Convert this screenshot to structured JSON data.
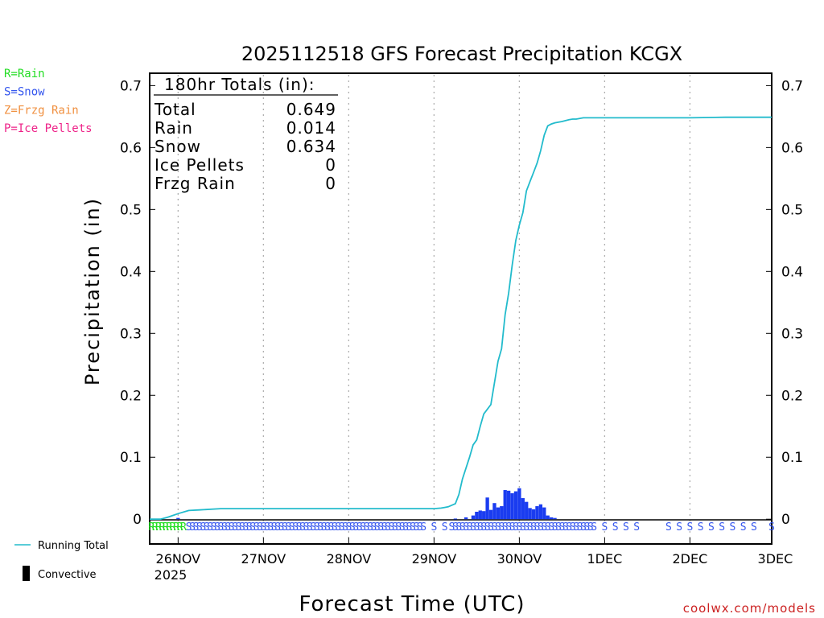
{
  "chart_data": {
    "type": "bar",
    "title": "2025112518 GFS Forecast Precipitation KCGX",
    "xlabel": "Forecast Time (UTC)",
    "ylabel": "Precipitation (in)",
    "ylim": [
      -0.04,
      0.72
    ],
    "xlim_hours": [
      -2,
      173
    ],
    "y_ticks": [
      "0",
      "0.1",
      "0.2",
      "0.3",
      "0.4",
      "0.5",
      "0.6",
      "0.7"
    ],
    "x_ticks": [
      {
        "label": "26NOV",
        "hour": 6
      },
      {
        "label": "27NOV",
        "hour": 30
      },
      {
        "label": "28NOV",
        "hour": 54
      },
      {
        "label": "29NOV",
        "hour": 78
      },
      {
        "label": "30NOV",
        "hour": 102
      },
      {
        "label": "1DEC",
        "hour": 126
      },
      {
        "label": "2DEC",
        "hour": 150
      },
      {
        "label": "3DEC",
        "hour": 174
      }
    ],
    "x_year_label": "2025",
    "totals_box": {
      "header": "180hr Totals (in):",
      "rows": [
        {
          "label": "Total",
          "value": "0.649"
        },
        {
          "label": "Rain",
          "value": "0.014"
        },
        {
          "label": "Snow",
          "value": "0.634"
        },
        {
          "label": "Ice Pellets",
          "value": "0"
        },
        {
          "label": "Frzg Rain",
          "value": "0"
        }
      ]
    },
    "legend_types": [
      {
        "label": "R=Rain",
        "color": "#22dd22"
      },
      {
        "label": "S=Snow",
        "color": "#3355ee"
      },
      {
        "label": "Z=Frzg Rain",
        "color": "#f09040"
      },
      {
        "label": "P=Ice Pellets",
        "color": "#ee2288"
      }
    ],
    "legend_series": [
      {
        "label": "Running Total",
        "color": "#22bbcc"
      },
      {
        "label": "Convective",
        "color": "#000000"
      }
    ],
    "running_total": {
      "hours": [
        -2,
        1,
        3,
        4.5,
        6,
        9,
        12,
        18,
        24,
        36,
        48,
        60,
        72,
        78,
        80,
        81,
        82,
        84,
        85,
        86,
        88,
        89,
        90,
        91,
        92,
        94,
        96,
        97,
        98,
        99,
        100,
        101,
        102,
        103,
        104,
        105,
        106,
        107,
        108,
        109,
        110,
        111,
        112,
        114,
        116,
        117,
        118,
        120,
        122,
        126,
        130,
        140,
        150,
        160,
        165,
        170,
        173
      ],
      "values": [
        0,
        0,
        0.003,
        0.006,
        0.009,
        0.014,
        0.015,
        0.017,
        0.017,
        0.017,
        0.017,
        0.017,
        0.017,
        0.017,
        0.018,
        0.019,
        0.02,
        0.025,
        0.04,
        0.065,
        0.1,
        0.12,
        0.128,
        0.15,
        0.17,
        0.185,
        0.255,
        0.275,
        0.33,
        0.365,
        0.41,
        0.45,
        0.475,
        0.495,
        0.53,
        0.545,
        0.56,
        0.575,
        0.595,
        0.62,
        0.635,
        0.638,
        0.64,
        0.642,
        0.645,
        0.646,
        0.646,
        0.648,
        0.648,
        0.648,
        0.648,
        0.648,
        0.648,
        0.649,
        0.649,
        0.649,
        0.649
      ]
    },
    "precip_bars": {
      "hours": [
        6,
        84,
        87,
        89,
        90,
        91,
        92,
        93,
        94,
        95,
        96,
        97,
        98,
        99,
        100,
        101,
        102,
        103,
        104,
        105,
        106,
        107,
        108,
        109,
        110,
        111,
        112
      ],
      "values": [
        0.002,
        0.001,
        0.003,
        0.006,
        0.012,
        0.014,
        0.013,
        0.035,
        0.015,
        0.026,
        0.019,
        0.021,
        0.047,
        0.046,
        0.042,
        0.045,
        0.05,
        0.034,
        0.028,
        0.018,
        0.016,
        0.021,
        0.024,
        0.019,
        0.006,
        0.003,
        0.002
      ],
      "color": "#1a3cf0"
    },
    "type_codes": {
      "rain": {
        "char": "R",
        "color": "#22dd22",
        "hours": [
          -1.5,
          -0.5,
          0.5,
          1.5,
          2.5,
          3.5,
          4.5,
          5.5,
          6.5,
          7.5
        ]
      },
      "snow": {
        "char": "S",
        "color": "#3355ee",
        "hours": [
          9,
          10,
          11,
          12,
          13,
          14,
          15,
          16,
          17,
          18,
          19,
          20,
          21,
          22,
          23,
          24,
          25,
          26,
          27,
          28,
          29,
          30,
          31,
          32,
          33,
          34,
          35,
          36,
          37,
          38,
          39,
          40,
          41,
          42,
          43,
          44,
          45,
          46,
          47,
          48,
          49,
          50,
          51,
          52,
          53,
          54,
          55,
          56,
          57,
          58,
          59,
          60,
          61,
          62,
          63,
          64,
          65,
          66,
          67,
          68,
          69,
          70,
          71,
          72,
          73,
          74,
          75,
          78,
          81,
          83,
          84,
          85,
          86,
          87,
          88,
          89,
          90,
          91,
          92,
          93,
          94,
          95,
          96,
          97,
          98,
          99,
          100,
          101,
          102,
          103,
          104,
          105,
          106,
          107,
          108,
          109,
          110,
          111,
          112,
          113,
          114,
          115,
          116,
          117,
          118,
          119,
          120,
          121,
          122,
          123,
          126,
          129,
          132,
          135,
          144,
          147,
          150,
          153,
          156,
          159,
          162,
          165,
          168,
          173
        ]
      }
    }
  },
  "footer": {
    "credit": "coolwx.com/models"
  }
}
